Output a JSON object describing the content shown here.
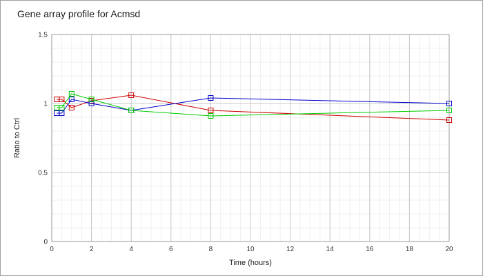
{
  "chart_data": {
    "type": "line",
    "title": "Gene array profile for Acmsd",
    "xlabel": "Time (hours)",
    "ylabel": "Ratio to Ctrl",
    "xlim": [
      0,
      20
    ],
    "ylim": [
      0,
      1.5
    ],
    "xticks": [
      0,
      2,
      4,
      6,
      8,
      10,
      12,
      14,
      16,
      18,
      20
    ],
    "xtick_labels": [
      "0",
      "2",
      "4",
      "6",
      "8",
      "10",
      "12",
      "14",
      "16",
      "18",
      "20"
    ],
    "yticks": [
      0,
      0.5,
      1,
      1.5
    ],
    "ytick_labels": [
      "0",
      "0.5",
      "1",
      "1.5"
    ],
    "grid": true,
    "legend": "none",
    "marker": "open-square",
    "series": [
      {
        "color": "#cc0000",
        "x": [
          0.25,
          0.5,
          1,
          2,
          4,
          8,
          20
        ],
        "y": [
          1.03,
          1.03,
          0.97,
          1.02,
          1.06,
          0.95,
          0.88
        ]
      },
      {
        "color": "#0000cc",
        "x": [
          0.25,
          0.5,
          1,
          2,
          4,
          8,
          20
        ],
        "y": [
          0.93,
          0.93,
          1.03,
          1.0,
          0.95,
          1.04,
          1.0
        ]
      },
      {
        "color": "#00cc00",
        "x": [
          0.25,
          0.5,
          1,
          2,
          4,
          8,
          20
        ],
        "y": [
          0.97,
          0.97,
          1.07,
          1.03,
          0.95,
          0.91,
          0.95
        ]
      }
    ]
  }
}
